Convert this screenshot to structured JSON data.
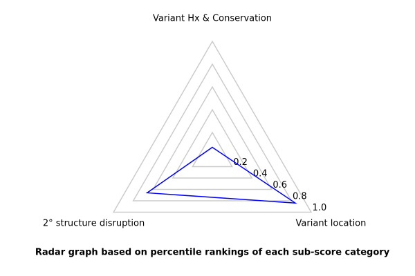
{
  "chart_data": {
    "type": "radar",
    "title": "Radar graph based on percentile rankings of each sub-score category",
    "categories": [
      "Variant Hx & Conservation",
      "Variant location",
      "2° structure disruption"
    ],
    "values": [
      0.07,
      0.84,
      0.66
    ],
    "color": "#0000ff",
    "grid_color": "#cccccc",
    "rlim": [
      0,
      1
    ],
    "rticks": [
      0.2,
      0.4,
      0.6,
      0.8,
      {
        "value": 1.0,
        "label": "1.0"
      }
    ],
    "grid": true
  }
}
